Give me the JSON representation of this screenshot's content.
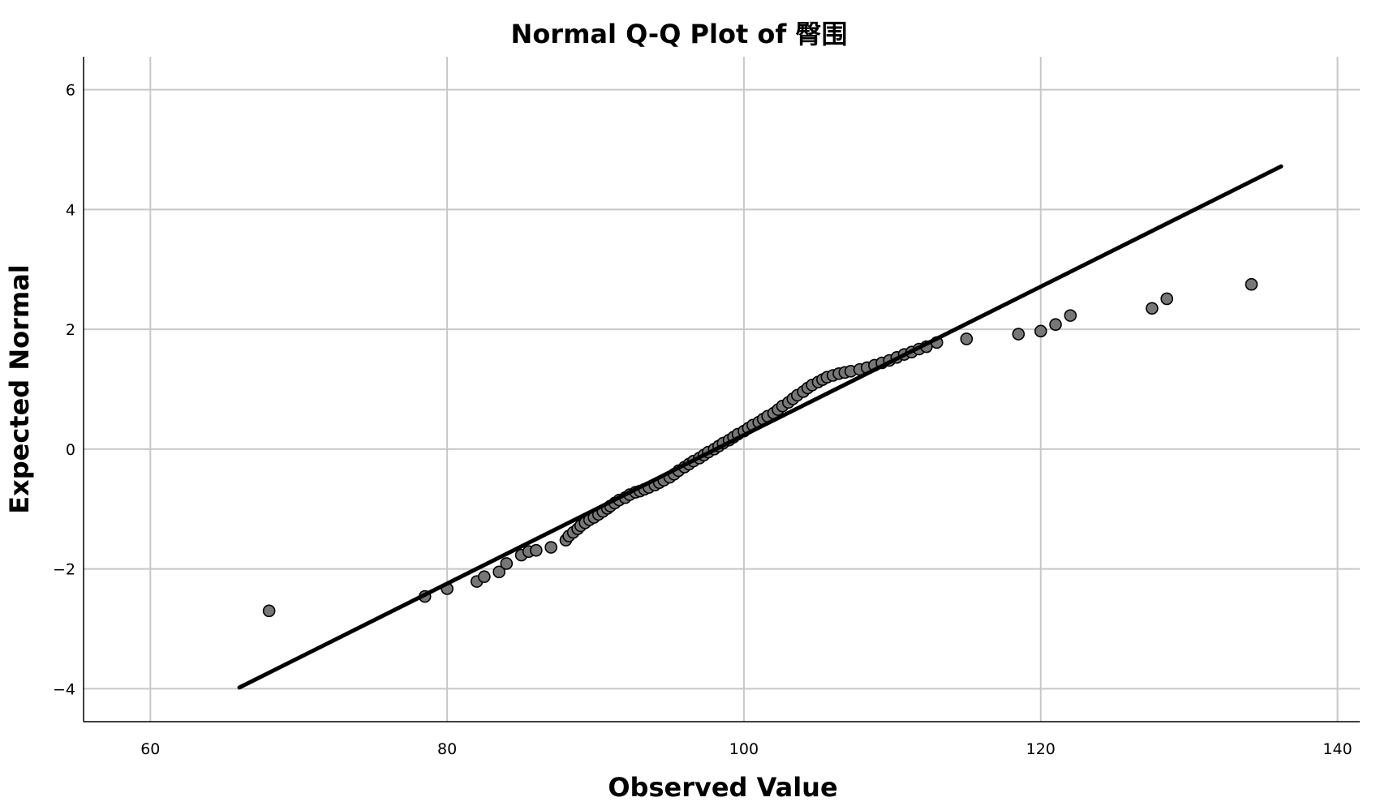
{
  "chart_data": {
    "type": "scatter",
    "title": "Normal Q-Q Plot of 臀围",
    "xlabel": "Observed Value",
    "ylabel": "Expected Normal",
    "xlim": [
      55.5,
      141.5
    ],
    "ylim": [
      -4.55,
      6.55
    ],
    "x_ticks": [
      60,
      80,
      100,
      120,
      140
    ],
    "y_ticks": [
      -4,
      -2,
      0,
      2,
      4,
      6
    ],
    "x_tick_labels": [
      "60",
      "80",
      "100",
      "120",
      "140"
    ],
    "y_tick_labels": [
      "−4",
      "−2",
      "0",
      "2",
      "4",
      "6"
    ],
    "grid": true,
    "reference_line": {
      "x": [
        66.0,
        136.2
      ],
      "y": [
        -3.98,
        4.72
      ],
      "color": "#000000"
    },
    "colors": {
      "marker_fill": "#777777",
      "marker_edge": "#000000",
      "grid": "#c8c8c8"
    },
    "series": [
      {
        "x": [
          68.0,
          78.5,
          80.0,
          82.0,
          82.5,
          83.5,
          84.0,
          85.0,
          85.5,
          86.0,
          87.0,
          88.0,
          88.2,
          88.5,
          88.8,
          89.0,
          89.3,
          89.6,
          89.9,
          90.2,
          90.5,
          90.8,
          91.0,
          91.3,
          91.6,
          92.0,
          92.3,
          92.7,
          93.0,
          93.3,
          93.6,
          94.0,
          94.3,
          94.6,
          95.0,
          95.3,
          95.6,
          96.0,
          96.3,
          96.6,
          97.0,
          97.3,
          97.6,
          98.0,
          98.3,
          98.6,
          99.0,
          99.3,
          99.6,
          100.0,
          100.3,
          100.6,
          101.0,
          101.3,
          101.6,
          102.0,
          102.3,
          102.6,
          103.0,
          103.3,
          103.6,
          104.0,
          104.3,
          104.6,
          105.0,
          105.3,
          105.6,
          106.0,
          106.4,
          106.8,
          107.2,
          107.8,
          108.3,
          108.8,
          109.3,
          109.8,
          110.3,
          110.8,
          111.3,
          111.8,
          112.3,
          113.0,
          115.0,
          118.5,
          120.0,
          121.0,
          122.0,
          127.5,
          128.5,
          134.2
        ],
        "y": [
          -2.7,
          -2.46,
          -2.33,
          -2.21,
          -2.13,
          -2.05,
          -1.91,
          -1.77,
          -1.71,
          -1.69,
          -1.64,
          -1.52,
          -1.45,
          -1.39,
          -1.33,
          -1.28,
          -1.23,
          -1.18,
          -1.14,
          -1.09,
          -1.04,
          -0.99,
          -0.95,
          -0.9,
          -0.85,
          -0.81,
          -0.76,
          -0.72,
          -0.7,
          -0.67,
          -0.64,
          -0.6,
          -0.56,
          -0.52,
          -0.47,
          -0.42,
          -0.36,
          -0.3,
          -0.25,
          -0.2,
          -0.15,
          -0.1,
          -0.05,
          0.0,
          0.05,
          0.1,
          0.15,
          0.2,
          0.25,
          0.3,
          0.35,
          0.4,
          0.45,
          0.5,
          0.55,
          0.6,
          0.66,
          0.72,
          0.78,
          0.84,
          0.9,
          0.96,
          1.02,
          1.07,
          1.12,
          1.16,
          1.2,
          1.23,
          1.26,
          1.28,
          1.3,
          1.33,
          1.36,
          1.4,
          1.44,
          1.48,
          1.53,
          1.58,
          1.62,
          1.67,
          1.71,
          1.78,
          1.84,
          1.92,
          1.97,
          2.08,
          2.23,
          2.35,
          2.51,
          2.75
        ]
      }
    ]
  }
}
